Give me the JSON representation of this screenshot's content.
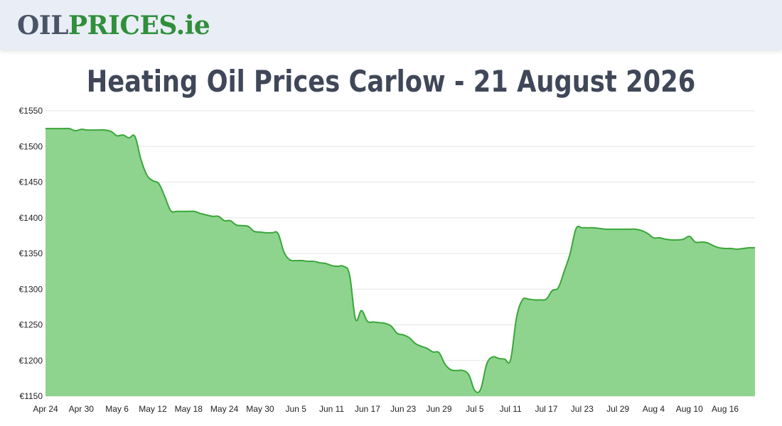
{
  "site": {
    "logo_part1": "OIL",
    "logo_part2": "PRICES",
    "logo_part3": ".ie"
  },
  "page_title": "Heating Oil Prices Carlow - 21 August 2026",
  "colors": {
    "header_bg": "#e9edf5",
    "line": "#3aa63a",
    "fill": "#8ed48e",
    "grid": "#e6e6e6"
  },
  "chart_data": {
    "type": "area",
    "title": "",
    "xlabel": "",
    "ylabel": "",
    "ylim": [
      1150,
      1550
    ],
    "grid": true,
    "legend": "none",
    "y_ticks": [
      "€1550",
      "€1500",
      "€1450",
      "€1400",
      "€1350",
      "€1300",
      "€1250",
      "€1200",
      "€1150"
    ],
    "y_tick_values": [
      1550,
      1500,
      1450,
      1400,
      1350,
      1300,
      1250,
      1200,
      1150
    ],
    "x_ticks": [
      "Apr 24",
      "Apr 30",
      "May 6",
      "May 12",
      "May 18",
      "May 24",
      "May 30",
      "Jun 5",
      "Jun 11",
      "Jun 17",
      "Jun 23",
      "Jun 29",
      "Jul 5",
      "Jul 11",
      "Jul 17",
      "Jul 23",
      "Jul 29",
      "Aug 4",
      "Aug 10",
      "Aug 16"
    ],
    "x_tick_index": [
      0,
      6,
      12,
      18,
      24,
      30,
      36,
      42,
      48,
      54,
      60,
      66,
      72,
      78,
      84,
      90,
      96,
      102,
      108,
      114
    ],
    "series": [
      {
        "x": [
          "Apr 24",
          "Apr 25",
          "Apr 26",
          "Apr 27",
          "Apr 28",
          "Apr 29",
          "Apr 30",
          "May 1",
          "May 2",
          "May 3",
          "May 4",
          "May 5",
          "May 6",
          "May 7",
          "May 8",
          "May 9",
          "May 10",
          "May 11",
          "May 12",
          "May 13",
          "May 14",
          "May 15",
          "May 16",
          "May 17",
          "May 18",
          "May 19",
          "May 20",
          "May 21",
          "May 22",
          "May 23",
          "May 24",
          "May 25",
          "May 26",
          "May 27",
          "May 28",
          "May 29",
          "May 30",
          "May 31",
          "Jun 1",
          "Jun 2",
          "Jun 3",
          "Jun 4",
          "Jun 5",
          "Jun 6",
          "Jun 7",
          "Jun 8",
          "Jun 9",
          "Jun 10",
          "Jun 11",
          "Jun 12",
          "Jun 13",
          "Jun 14",
          "Jun 15",
          "Jun 16",
          "Jun 17",
          "Jun 18",
          "Jun 19",
          "Jun 20",
          "Jun 21",
          "Jun 22",
          "Jun 23",
          "Jun 24",
          "Jun 25",
          "Jun 26",
          "Jun 27",
          "Jun 28",
          "Jun 29",
          "Jun 30",
          "Jul 1",
          "Jul 2",
          "Jul 3",
          "Jul 4",
          "Jul 5",
          "Jul 6",
          "Jul 7",
          "Jul 8",
          "Jul 9",
          "Jul 10",
          "Jul 11",
          "Jul 12",
          "Jul 13",
          "Jul 14",
          "Jul 15",
          "Jul 16",
          "Jul 17",
          "Jul 18",
          "Jul 19",
          "Jul 20",
          "Jul 21",
          "Jul 22",
          "Jul 23",
          "Jul 24",
          "Jul 25",
          "Jul 26",
          "Jul 27",
          "Jul 28",
          "Jul 29",
          "Jul 30",
          "Jul 31",
          "Aug 1",
          "Aug 2",
          "Aug 3",
          "Aug 4",
          "Aug 5",
          "Aug 6",
          "Aug 7",
          "Aug 8",
          "Aug 9",
          "Aug 10",
          "Aug 11",
          "Aug 12",
          "Aug 13",
          "Aug 14",
          "Aug 15",
          "Aug 16",
          "Aug 17",
          "Aug 18",
          "Aug 19",
          "Aug 20",
          "Aug 21"
        ],
        "values": [
          1525,
          1525,
          1525,
          1525,
          1525,
          1522,
          1524,
          1523,
          1523,
          1523,
          1523,
          1521,
          1515,
          1516,
          1512,
          1514,
          1482,
          1460,
          1452,
          1448,
          1430,
          1410,
          1409,
          1409,
          1409,
          1409,
          1406,
          1404,
          1402,
          1402,
          1396,
          1396,
          1390,
          1389,
          1388,
          1381,
          1380,
          1379,
          1379,
          1378,
          1352,
          1341,
          1340,
          1340,
          1339,
          1339,
          1337,
          1336,
          1333,
          1332,
          1332,
          1320,
          1258,
          1270,
          1255,
          1254,
          1253,
          1252,
          1248,
          1238,
          1236,
          1232,
          1224,
          1220,
          1217,
          1212,
          1211,
          1195,
          1187,
          1186,
          1186,
          1180,
          1158,
          1160,
          1195,
          1205,
          1203,
          1202,
          1201,
          1260,
          1285,
          1286,
          1285,
          1285,
          1286,
          1298,
          1302,
          1325,
          1350,
          1385,
          1386,
          1386,
          1386,
          1385,
          1384,
          1384,
          1384,
          1384,
          1384,
          1384,
          1382,
          1378,
          1372,
          1372,
          1370,
          1369,
          1369,
          1370,
          1374,
          1366,
          1366,
          1365,
          1361,
          1358,
          1357,
          1357,
          1356,
          1357,
          1358,
          1358
        ]
      }
    ]
  }
}
